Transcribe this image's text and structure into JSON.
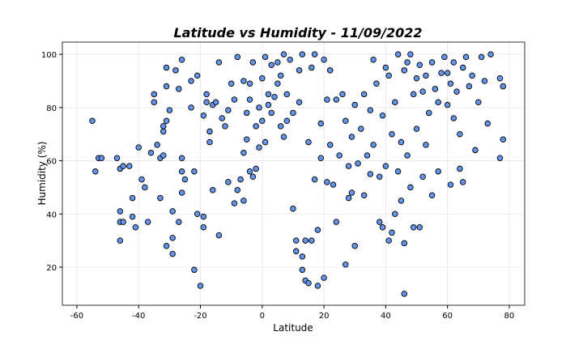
{
  "chart_data": {
    "type": "scatter",
    "title": "Latitude vs Humidity - 11/09/2022",
    "x_label": "Latitude",
    "y_label": "Humidity (%)",
    "color": "#6495ed",
    "edgecolor": "#000000",
    "grid": true,
    "xlim": [
      -64.7,
      85
    ],
    "ylim": [
      5.7,
      104.6
    ],
    "xticks": [
      -60,
      -40,
      -20,
      0,
      20,
      40,
      60,
      80
    ],
    "yticks": [
      20,
      40,
      60,
      80,
      100
    ],
    "x": [
      -55,
      -54,
      -53,
      -52,
      -47,
      -46,
      -46,
      -46,
      -45,
      -45,
      -46,
      -43,
      -42,
      -42,
      -41,
      -40,
      -39,
      -37,
      -38,
      -36,
      -35,
      -35,
      -33,
      -34,
      -33,
      -32,
      -32,
      -32,
      -31,
      -31,
      -31,
      -31,
      -30,
      -29,
      -29,
      -29,
      -28,
      -27,
      -27,
      -26,
      -26,
      -26,
      -26,
      -25,
      -23,
      -23,
      -22,
      -22,
      -21,
      -21,
      -20,
      -19,
      -19,
      -19,
      -18,
      -18,
      -17,
      -17,
      -16,
      -16,
      -15,
      -14,
      -14,
      -13,
      -12,
      -11,
      -11,
      -10,
      -9,
      -9,
      -8,
      -8,
      -7,
      -6,
      -6,
      -6,
      -5,
      -5,
      -4,
      -4,
      -4,
      -3,
      -3,
      -2,
      -2,
      -1,
      -1,
      0,
      0,
      1,
      1,
      2,
      2,
      3,
      3,
      4,
      5,
      5,
      6,
      6,
      7,
      7,
      8,
      8,
      9,
      10,
      10,
      11,
      11,
      12,
      12,
      13,
      13,
      13,
      14,
      14,
      15,
      15,
      16,
      16,
      17,
      17,
      18,
      18,
      19,
      19,
      20,
      20,
      21,
      21,
      22,
      22,
      23,
      24,
      24,
      25,
      26,
      27,
      27,
      28,
      28,
      29,
      29,
      30,
      30,
      31,
      32,
      33,
      33,
      34,
      35,
      35,
      36,
      36,
      37,
      38,
      38,
      39,
      39,
      40,
      40,
      41,
      41,
      42,
      42,
      43,
      43,
      44,
      44,
      45,
      45,
      46,
      46,
      46,
      47,
      47,
      48,
      48,
      49,
      49,
      50,
      50,
      51,
      51,
      52,
      52,
      53,
      53,
      54,
      55,
      55,
      56,
      57,
      57,
      58,
      59,
      60,
      60,
      61,
      61,
      62,
      62,
      63,
      64,
      64,
      65,
      65,
      66,
      67,
      68,
      69,
      70,
      71,
      72,
      73,
      74,
      77,
      77,
      78,
      78
    ],
    "values": [
      75,
      56,
      61,
      61,
      61,
      57,
      30,
      37,
      58,
      37,
      41,
      58,
      39,
      46,
      35,
      65,
      53,
      37,
      50,
      63,
      82,
      85,
      61,
      66,
      46,
      71,
      73,
      62,
      75,
      88,
      95,
      28,
      79,
      25,
      31,
      41,
      94,
      37,
      87,
      48,
      56,
      61,
      98,
      53,
      80,
      90,
      56,
      19,
      92,
      40,
      13,
      39,
      35,
      77,
      85,
      82,
      71,
      67,
      81,
      49,
      82,
      32,
      97,
      76,
      73,
      52,
      79,
      89,
      44,
      83,
      99,
      49,
      53,
      45,
      63,
      90,
      68,
      78,
      89,
      56,
      83,
      97,
      54,
      57,
      73,
      80,
      65,
      91,
      75,
      99,
      67,
      85,
      81,
      96,
      78,
      84,
      89,
      97,
      73,
      92,
      100,
      69,
      85,
      75,
      98,
      42,
      78,
      30,
      26,
      94,
      82,
      24,
      19,
      100,
      30,
      15,
      14,
      67,
      30,
      95,
      53,
      100,
      34,
      13,
      61,
      74,
      16,
      98,
      52,
      83,
      66,
      94,
      51,
      37,
      83,
      62,
      85,
      21,
      75,
      58,
      46,
      69,
      48,
      28,
      81,
      59,
      72,
      47,
      85,
      62,
      79,
      55,
      98,
      66,
      89,
      37,
      54,
      35,
      77,
      95,
      58,
      30,
      92,
      70,
      33,
      40,
      82,
      100,
      56,
      45,
      67,
      10,
      29,
      94,
      97,
      62,
      100,
      50,
      85,
      35,
      91,
      72,
      35,
      96,
      86,
      54,
      92,
      66,
      78,
      47,
      97,
      87,
      56,
      82,
      93,
      99,
      81,
      93,
      51,
      89,
      97,
      76,
      86,
      57,
      70,
      52,
      95,
      99,
      88,
      92,
      64,
      82,
      99,
      90,
      74,
      100,
      91,
      61,
      68,
      88
    ]
  }
}
